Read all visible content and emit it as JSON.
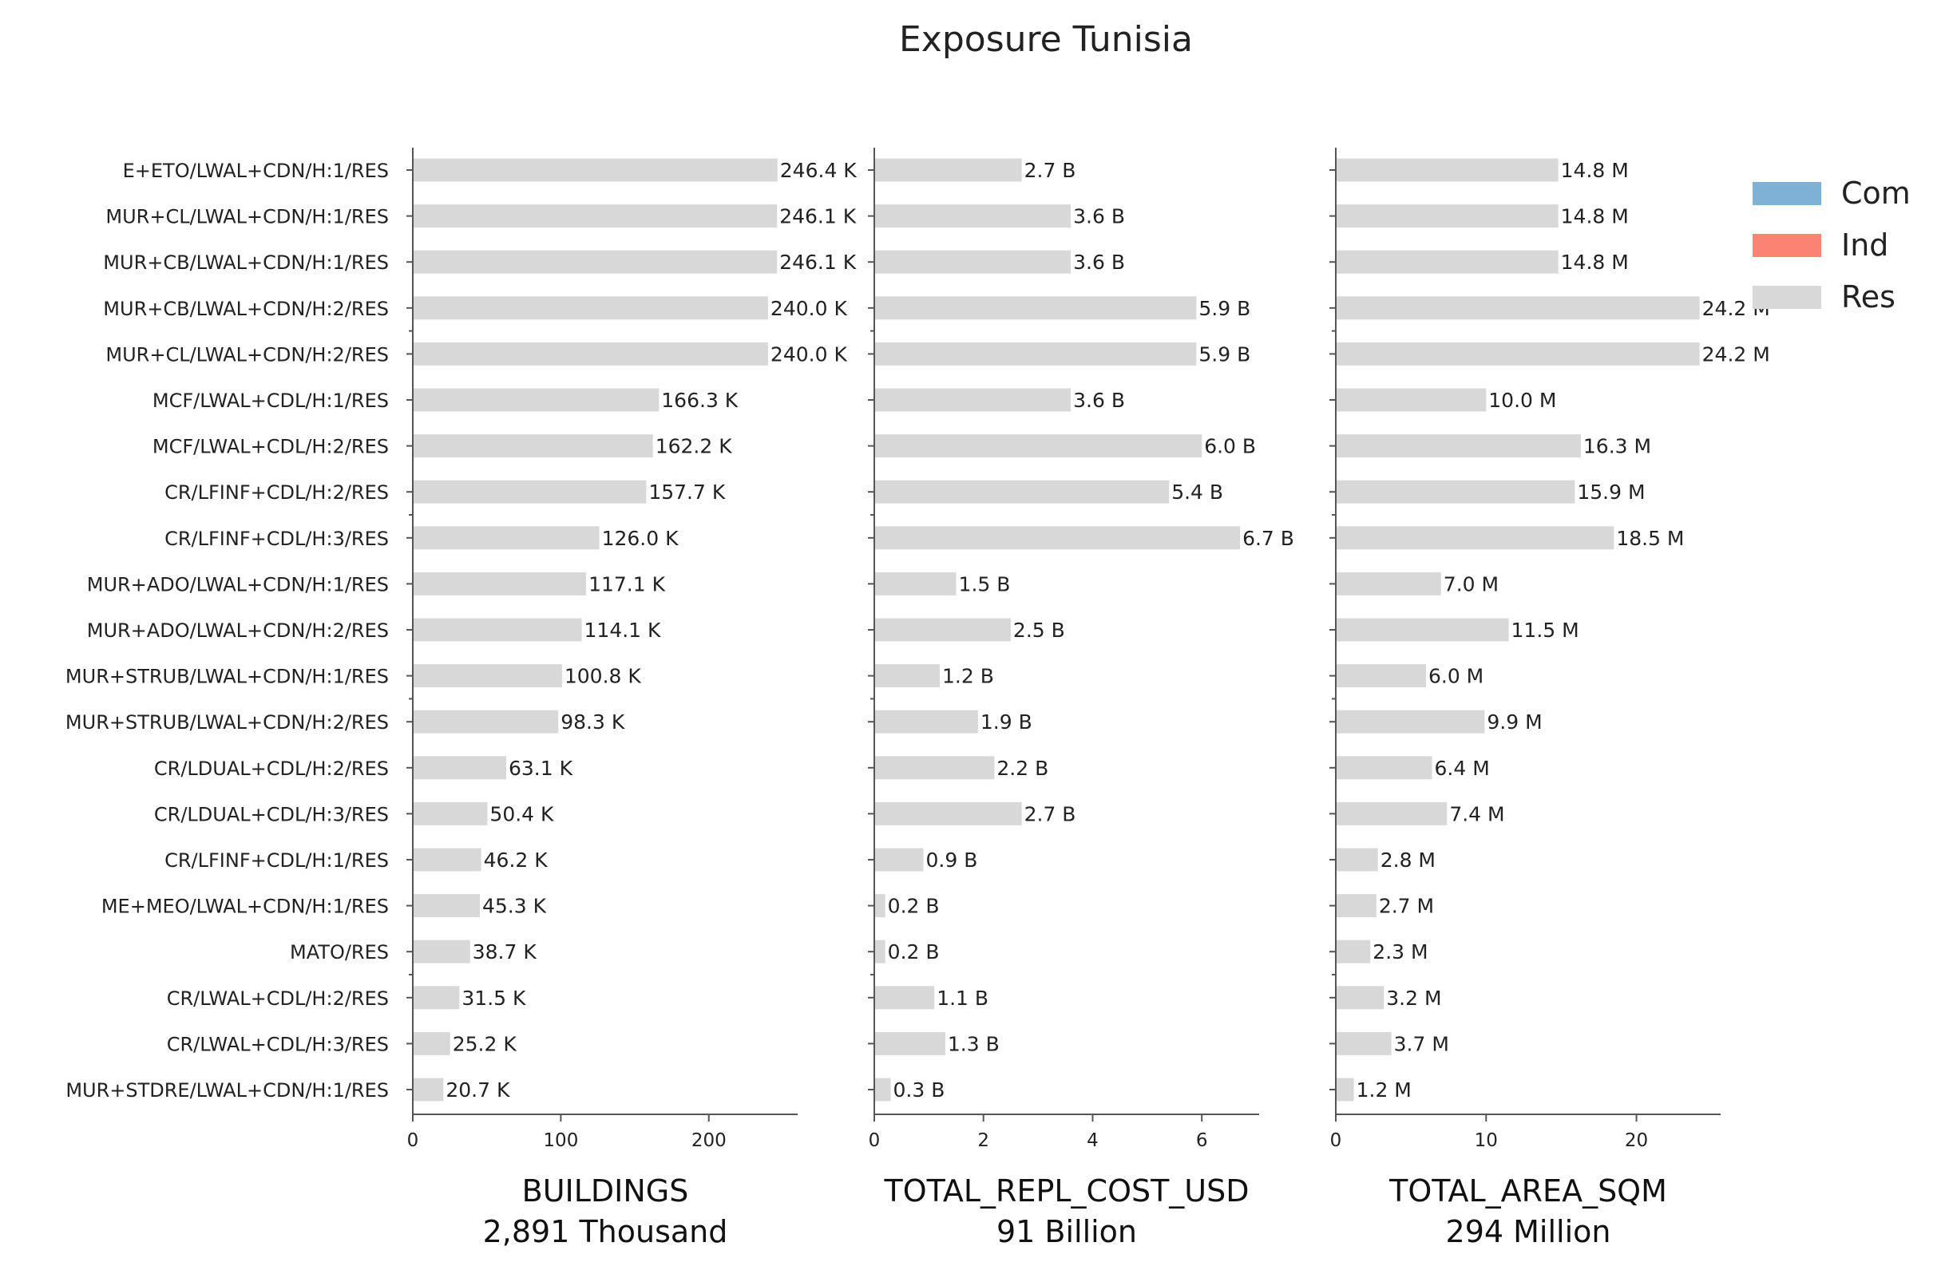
{
  "chart_data": {
    "type": "bar",
    "orientation": "horizontal",
    "title": "Exposure Tunisia",
    "categories": [
      "E+ETO/LWAL+CDN/H:1/RES",
      "MUR+CL/LWAL+CDN/H:1/RES",
      "MUR+CB/LWAL+CDN/H:1/RES",
      "MUR+CB/LWAL+CDN/H:2/RES",
      "MUR+CL/LWAL+CDN/H:2/RES",
      "MCF/LWAL+CDL/H:1/RES",
      "MCF/LWAL+CDL/H:2/RES",
      "CR/LFINF+CDL/H:2/RES",
      "CR/LFINF+CDL/H:3/RES",
      "MUR+ADO/LWAL+CDN/H:1/RES",
      "MUR+ADO/LWAL+CDN/H:2/RES",
      "MUR+STRUB/LWAL+CDN/H:1/RES",
      "MUR+STRUB/LWAL+CDN/H:2/RES",
      "CR/LDUAL+CDL/H:2/RES",
      "CR/LDUAL+CDL/H:3/RES",
      "CR/LFINF+CDL/H:1/RES",
      "ME+MEO/LWAL+CDN/H:1/RES",
      "MATO/RES",
      "CR/LWAL+CDL/H:2/RES",
      "CR/LWAL+CDL/H:3/RES",
      "MUR+STDRE/LWAL+CDN/H:1/RES"
    ],
    "panels": [
      {
        "xlabel": "BUILDINGS",
        "total": "2,891 Thousand",
        "xlim": [
          0,
          260
        ],
        "xticks": [
          0,
          100,
          200
        ],
        "values": [
          246.4,
          246.1,
          246.1,
          240.0,
          240.0,
          166.3,
          162.2,
          157.7,
          126.0,
          117.1,
          114.1,
          100.8,
          98.3,
          63.1,
          50.4,
          46.2,
          45.3,
          38.7,
          31.5,
          25.2,
          20.7
        ],
        "value_labels": [
          "246.4 K",
          "246.1 K",
          "246.1 K",
          "240.0 K",
          "240.0 K",
          "166.3 K",
          "162.2 K",
          "157.7 K",
          "126.0 K",
          "117.1 K",
          "114.1 K",
          "100.8 K",
          "98.3 K",
          "63.1 K",
          "50.4 K",
          "46.2 K",
          "45.3 K",
          "38.7 K",
          "31.5 K",
          "25.2 K",
          "20.7 K"
        ]
      },
      {
        "xlabel": "TOTAL_REPL_COST_USD",
        "total": "91 Billion",
        "xlim": [
          0,
          7.05
        ],
        "xticks": [
          0,
          2,
          4,
          6
        ],
        "values": [
          2.7,
          3.6,
          3.6,
          5.9,
          5.9,
          3.6,
          6.0,
          5.4,
          6.7,
          1.5,
          2.5,
          1.2,
          1.9,
          2.2,
          2.7,
          0.9,
          0.2,
          0.2,
          1.1,
          1.3,
          0.3
        ],
        "value_labels": [
          "2.7 B",
          "3.6 B",
          "3.6 B",
          "5.9 B",
          "5.9 B",
          "3.6 B",
          "6.0 B",
          "5.4 B",
          "6.7 B",
          "1.5 B",
          "2.5 B",
          "1.2 B",
          "1.9 B",
          "2.2 B",
          "2.7 B",
          "0.9 B",
          "0.2 B",
          "0.2 B",
          "1.1 B",
          "1.3 B",
          "0.3 B"
        ]
      },
      {
        "xlabel": "TOTAL_AREA_SQM",
        "total": "294 Million",
        "xlim": [
          0,
          25.6
        ],
        "xticks": [
          0,
          10,
          20
        ],
        "values": [
          14.8,
          14.8,
          14.8,
          24.2,
          24.2,
          10.0,
          16.3,
          15.9,
          18.5,
          7.0,
          11.5,
          6.0,
          9.9,
          6.4,
          7.4,
          2.8,
          2.7,
          2.3,
          3.2,
          3.7,
          1.2
        ],
        "value_labels": [
          "14.8 M",
          "14.8 M",
          "14.8 M",
          "24.2 M",
          "24.2 M",
          "10.0 M",
          "16.3 M",
          "15.9 M",
          "18.5 M",
          "7.0 M",
          "11.5 M",
          "6.0 M",
          "9.9 M",
          "6.4 M",
          "7.4 M",
          "2.8 M",
          "2.7 M",
          "2.3 M",
          "3.2 M",
          "3.7 M",
          "1.2 M"
        ]
      }
    ],
    "legend": {
      "placement": "top-right",
      "entries": [
        {
          "name": "Com",
          "color": "#7fb0d6"
        },
        {
          "name": "Ind",
          "color": "#fa8374"
        },
        {
          "name": "Res",
          "color": "#d8d8d8"
        }
      ]
    },
    "bar_color": "#d8d8d8",
    "grid": false
  }
}
